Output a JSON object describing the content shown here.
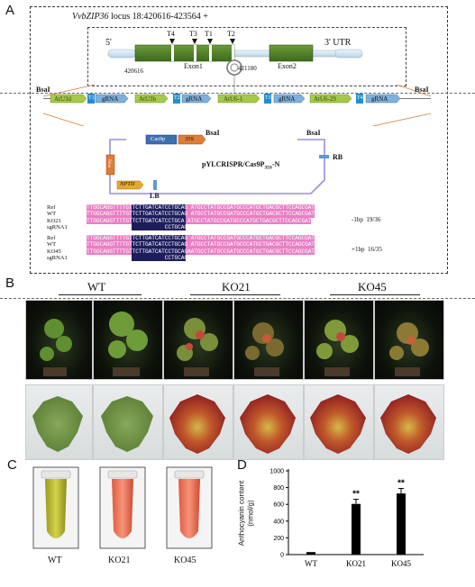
{
  "panels": {
    "a": "A",
    "b": "B",
    "c": "C",
    "d": "D"
  },
  "panel_a": {
    "locus_gene": "VvbZIP36",
    "locus_text": " locus 18:420616-423564 +",
    "utr5": "5'",
    "utr3": "3' UTR",
    "exon1": "Exon1",
    "exon2": "Exon2",
    "coord_start": "420616",
    "coord_mid": "421180",
    "targets": [
      "T4",
      "T3",
      "T1",
      "T2"
    ],
    "bsai": "BsaI",
    "cassette": [
      "AtU3d",
      "T1",
      "gRNA",
      "AtU3b",
      "T2",
      "gRNA",
      "AtU6-1",
      "T3",
      "gRNA",
      "AtU6-29",
      "T4",
      "gRNA"
    ],
    "vector_name": "pYLCRISPR/Cas9P",
    "vector_sub": "35S",
    "vector_suffix": "-N",
    "cas9p": "Cas9p",
    "p35s": "35S",
    "nos": "Nos",
    "nptii": "NPTII",
    "lb": "LB",
    "rb": "RB",
    "alignment1": {
      "labels": [
        "Ref",
        "WT",
        "KO21",
        "sgRNA1"
      ],
      "seqs": [
        "TTGGCAGGTTTTGTTCTTGATCATCCTGCAG ATGCCTATGCCGATGCCCATGCTGACGCTTCCAGCGAT",
        "TTGGCAGGTTTTGTTCTTGATCATCCTGCAG ATGCCTATGCCGATGCCCATGCTGACGCTTCCAGCGAT",
        "TTGGCAGGTTTTGTTCTTGATCATCCTGCA ATGCCTATGCCGATGCCCATGCTGACGCTTCCAGCGAT",
        "                        CCTGCAG ATGCCTATGCCGATGC"
      ],
      "result": "-1bp",
      "ratio": "19/36"
    },
    "alignment2": {
      "labels": [
        "Ref",
        "WT",
        "KO45",
        "sgRNA1"
      ],
      "seqs": [
        "TTGGCAGGTTTTGTTCTTGATCATCCTGCAG ATGCCTATGCCGATGCCCATGCTGACGCTTCCAGCGAT",
        "TTGGCAGGTTTTGTTCTTGATCATCCTGCAG ATGCCTATGCCGATGCCCATGCTGACGCTTCCAGCGAT",
        "TTGGCAGGTTTTGTTCTTGATCATCCTGCAGAATGCCTATGCCGATGCCCATGCTGACGCTTCCAGCGAT",
        "                        CCTGCAG ATGCCTATGCCGATGC"
      ],
      "result": "+1bp",
      "ratio": "16/35"
    }
  },
  "panel_b": {
    "groups": [
      "WT",
      "KO21",
      "KO45"
    ]
  },
  "panel_c": {
    "tubes": [
      "WT",
      "KO21",
      "KO45"
    ]
  },
  "colors": {
    "accent_green": "#5a8a2a",
    "gRNA_blue": "#5b9bd5",
    "seq_pink": "#e97fc4",
    "seq_navy": "#1d1d5c"
  },
  "chart_data": {
    "type": "bar",
    "categories": [
      "WT",
      "KO21",
      "KO45"
    ],
    "values": [
      30,
      605,
      730
    ],
    "errors": [
      0,
      55,
      60
    ],
    "significance": [
      "",
      "**",
      "**"
    ],
    "ylabel": "Anthocyanin content\n(nmol/g)",
    "ylim": [
      0,
      1000
    ],
    "yticks": [
      0,
      200,
      400,
      600,
      800,
      1000
    ],
    "grid": false
  }
}
